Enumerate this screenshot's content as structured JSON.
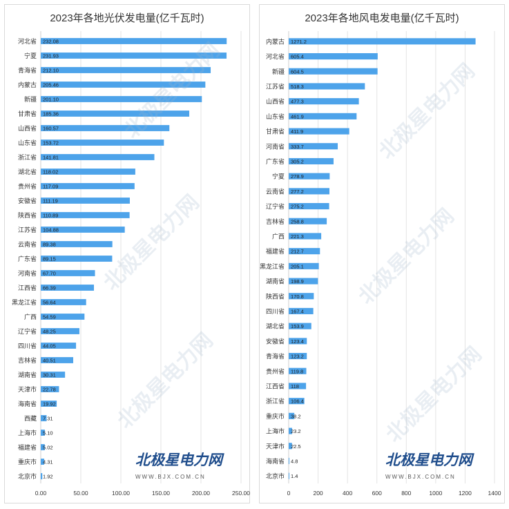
{
  "watermark": {
    "brand": "北极星电力网",
    "url": "WWW.BJX.COM.CN"
  },
  "chart_data": [
    {
      "type": "bar",
      "orientation": "horizontal",
      "title": "2023年各地光伏发电量(亿千瓦时)",
      "categories": [
        "河北省",
        "宁夏",
        "青海省",
        "内蒙古",
        "新疆",
        "甘肃省",
        "山西省",
        "山东省",
        "浙江省",
        "湖北省",
        "贵州省",
        "安徽省",
        "陕西省",
        "江苏省",
        "云南省",
        "广东省",
        "河南省",
        "江西省",
        "黑龙江省",
        "广西",
        "辽宁省",
        "四川省",
        "吉林省",
        "湖南省",
        "天津市",
        "海南省",
        "西藏",
        "上海市",
        "福建省",
        "重庆市",
        "北京市"
      ],
      "values": [
        232.08,
        231.93,
        212.1,
        205.46,
        201.1,
        185.36,
        160.57,
        153.72,
        141.81,
        118.02,
        117.09,
        111.19,
        110.89,
        104.88,
        89.38,
        89.15,
        67.7,
        66.39,
        56.64,
        54.59,
        48.25,
        44.05,
        40.51,
        30.31,
        22.78,
        19.92,
        7.31,
        5.1,
        5.02,
        4.31,
        1.92
      ],
      "value_labels": [
        "232.08",
        "231.93",
        "212.10",
        "205.46",
        "201.10",
        "185.36",
        "160.57",
        "153.72",
        "141.81",
        "118.02",
        "117.09",
        "111.19",
        "110.89",
        "104.88",
        "89.38",
        "89.15",
        "67.70",
        "66.39",
        "56.64",
        "54.59",
        "48.25",
        "44.05",
        "40.51",
        "30.31",
        "22.78",
        "19.92",
        "7.31",
        "5.10",
        "5.02",
        "4.31",
        "1.92"
      ],
      "xlim": [
        0,
        250
      ],
      "xticks": [
        0,
        50,
        100,
        150,
        200,
        250
      ],
      "xtick_labels": [
        "0.00",
        "50.00",
        "100.00",
        "150.00",
        "200.00",
        "250.00"
      ],
      "grid": true,
      "bar_color": "#4da3ea"
    },
    {
      "type": "bar",
      "orientation": "horizontal",
      "title": "2023年各地风电发电量(亿千瓦时)",
      "categories": [
        "内蒙古",
        "河北省",
        "新疆",
        "江苏省",
        "山西省",
        "山东省",
        "甘肃省",
        "河南省",
        "广东省",
        "宁夏",
        "云南省",
        "辽宁省",
        "吉林省",
        "广西",
        "福建省",
        "黑龙江省",
        "湖南省",
        "陕西省",
        "四川省",
        "湖北省",
        "安徽省",
        "青海省",
        "贵州省",
        "江西省",
        "浙江省",
        "重庆市",
        "上海市",
        "天津市",
        "海南省",
        "北京市"
      ],
      "values": [
        1271.2,
        605.4,
        604.5,
        518.3,
        477.3,
        461.9,
        411.9,
        333.7,
        305.2,
        278.9,
        277.2,
        275.2,
        258.8,
        221.3,
        212.7,
        205.1,
        198.9,
        170.8,
        167.4,
        153.9,
        123.4,
        123.2,
        119.8,
        118,
        106.4,
        38.2,
        23.2,
        22.5,
        4.8,
        1.4
      ],
      "value_labels": [
        "1271.2",
        "605.4",
        "604.5",
        "518.3",
        "477.3",
        "461.9",
        "411.9",
        "333.7",
        "305.2",
        "278.9",
        "277.2",
        "275.2",
        "258.8",
        "221.3",
        "212.7",
        "205.1",
        "198.9",
        "170.8",
        "167.4",
        "153.9",
        "123.4",
        "123.2",
        "119.8",
        "118",
        "106.4",
        "38.2",
        "23.2",
        "22.5",
        "4.8",
        "1.4"
      ],
      "xlim": [
        0,
        1400
      ],
      "xticks": [
        0,
        200,
        400,
        600,
        800,
        1000,
        1200,
        1400
      ],
      "xtick_labels": [
        "0",
        "200",
        "400",
        "600",
        "800",
        "1000",
        "1200",
        "1400"
      ],
      "grid": true,
      "bar_color": "#4da3ea"
    }
  ]
}
